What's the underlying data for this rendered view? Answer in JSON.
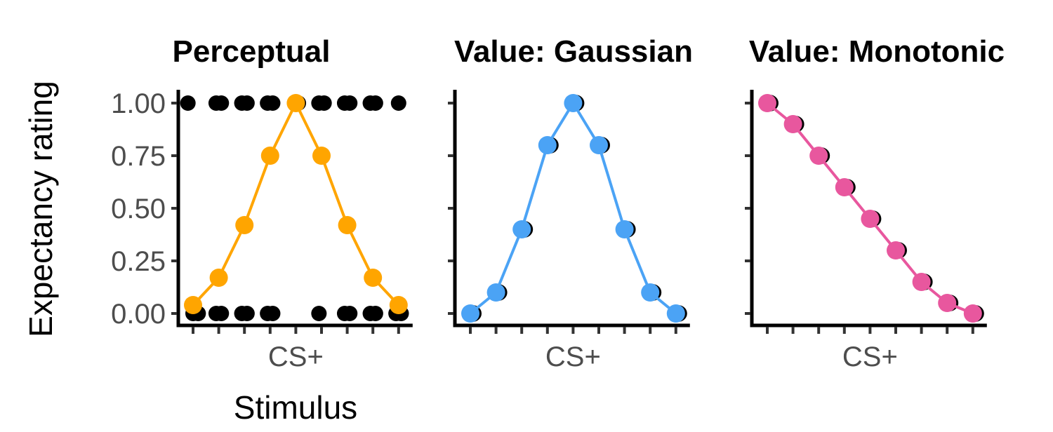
{
  "y_axis_title": "Expectancy rating",
  "x_axis_title": "Stimulus",
  "colors": {
    "perceptual": "#FFA500",
    "gaussian": "#4BA3F5",
    "monotonic": "#E8579E",
    "raw": "#000000",
    "tick_text": "#4d4d4d"
  },
  "chart_data": [
    {
      "type": "line",
      "title": "Perceptual",
      "x_tick_labels": [
        "",
        "",
        "",
        "",
        "CS+",
        "",
        "",
        "",
        ""
      ],
      "x": [
        1,
        2,
        3,
        4,
        5,
        6,
        7,
        8,
        9
      ],
      "ylim": [
        0,
        1
      ],
      "y_ticks": [
        "0.00",
        "0.25",
        "0.50",
        "0.75",
        "1.00"
      ],
      "grid": false,
      "series": [
        {
          "values": [
            0.04,
            0.17,
            0.42,
            0.75,
            1.0,
            0.75,
            0.42,
            0.17,
            0.04
          ],
          "color": "#FFA500"
        }
      ],
      "raw_points": [
        [
          0.8,
          1
        ],
        [
          1.9,
          1
        ],
        [
          2.1,
          1
        ],
        [
          2.9,
          1
        ],
        [
          3.1,
          1
        ],
        [
          3.9,
          1
        ],
        [
          4.1,
          1
        ],
        [
          5.1,
          1
        ],
        [
          5.9,
          1
        ],
        [
          6.1,
          1
        ],
        [
          6.9,
          1
        ],
        [
          7.1,
          1
        ],
        [
          7.9,
          1
        ],
        [
          8.1,
          1
        ],
        [
          9.0,
          1
        ],
        [
          1.0,
          0
        ],
        [
          1.2,
          0
        ],
        [
          1.9,
          0
        ],
        [
          2.1,
          0
        ],
        [
          2.9,
          0
        ],
        [
          3.1,
          0
        ],
        [
          3.9,
          0
        ],
        [
          4.1,
          0
        ],
        [
          5.9,
          0
        ],
        [
          6.9,
          0
        ],
        [
          7.1,
          0
        ],
        [
          7.9,
          0
        ],
        [
          8.1,
          0
        ],
        [
          8.9,
          0
        ],
        [
          9.1,
          0
        ]
      ]
    },
    {
      "type": "line",
      "title": "Value: Gaussian",
      "x_tick_labels": [
        "",
        "",
        "",
        "",
        "CS+",
        "",
        "",
        "",
        ""
      ],
      "x": [
        1,
        2,
        3,
        4,
        5,
        6,
        7,
        8,
        9
      ],
      "ylim": [
        0,
        1
      ],
      "y_ticks": [
        "",
        "",
        "",
        "",
        ""
      ],
      "grid": false,
      "series": [
        {
          "values": [
            0.0,
            0.1,
            0.4,
            0.8,
            1.0,
            0.8,
            0.4,
            0.1,
            0.0
          ],
          "color": "#4BA3F5"
        }
      ]
    },
    {
      "type": "line",
      "title": "Value: Monotonic",
      "x_tick_labels": [
        "",
        "",
        "",
        "",
        "CS+",
        "",
        "",
        "",
        ""
      ],
      "x": [
        1,
        2,
        3,
        4,
        5,
        6,
        7,
        8,
        9
      ],
      "ylim": [
        0,
        1
      ],
      "y_ticks": [
        "",
        "",
        "",
        "",
        ""
      ],
      "grid": false,
      "series": [
        {
          "values": [
            1.0,
            0.9,
            0.75,
            0.6,
            0.45,
            0.3,
            0.15,
            0.05,
            0.0
          ],
          "color": "#E8579E"
        }
      ]
    }
  ]
}
